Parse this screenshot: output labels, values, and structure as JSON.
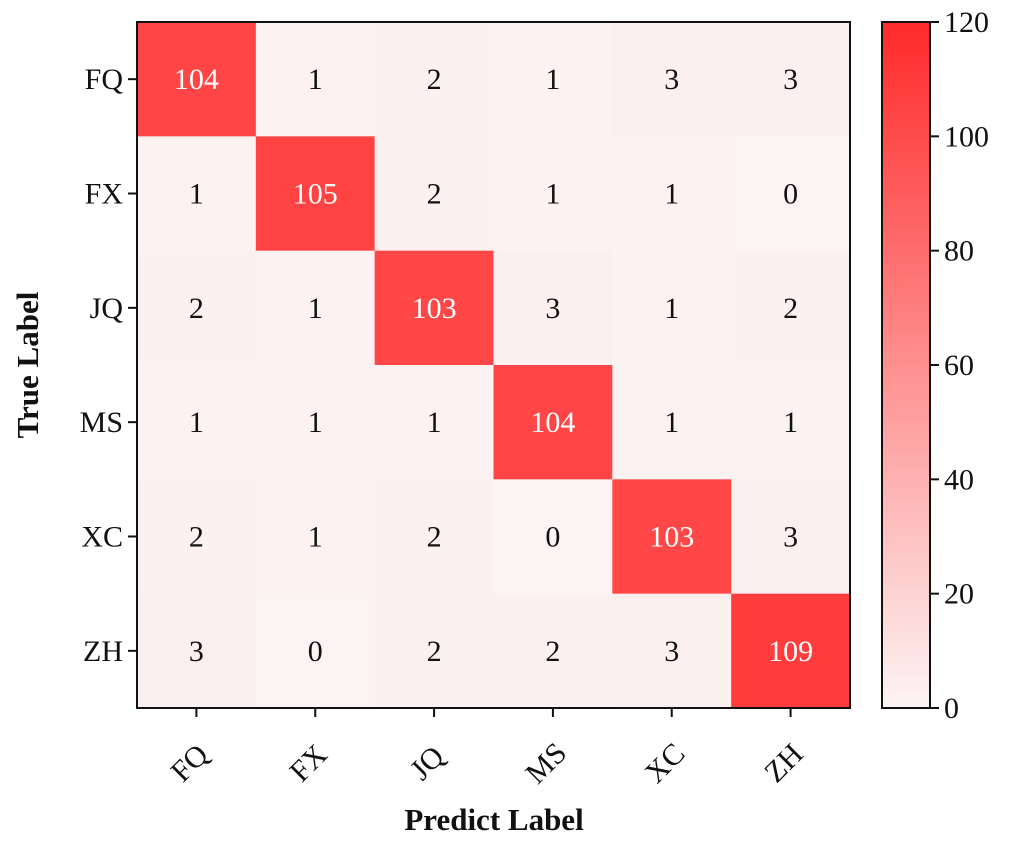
{
  "chart_data": {
    "type": "heatmap",
    "title": "",
    "xlabel": "Predict Label",
    "ylabel": "True Label",
    "x_categories": [
      "FQ",
      "FX",
      "JQ",
      "MS",
      "XC",
      "ZH"
    ],
    "y_categories": [
      "FQ",
      "FX",
      "JQ",
      "MS",
      "XC",
      "ZH"
    ],
    "values": [
      [
        104,
        1,
        2,
        1,
        3,
        3
      ],
      [
        1,
        105,
        2,
        1,
        1,
        0
      ],
      [
        2,
        1,
        103,
        3,
        1,
        2
      ],
      [
        1,
        1,
        1,
        104,
        1,
        1
      ],
      [
        2,
        1,
        2,
        0,
        103,
        3
      ],
      [
        3,
        0,
        2,
        2,
        3,
        109
      ]
    ],
    "colorbar": {
      "range": [
        0,
        120
      ],
      "ticks": [
        "0",
        "20",
        "40",
        "60",
        "80",
        "100",
        "120"
      ],
      "color_low": "#fcf4f4",
      "color_high": "#ff2a2a"
    },
    "grid": false
  }
}
